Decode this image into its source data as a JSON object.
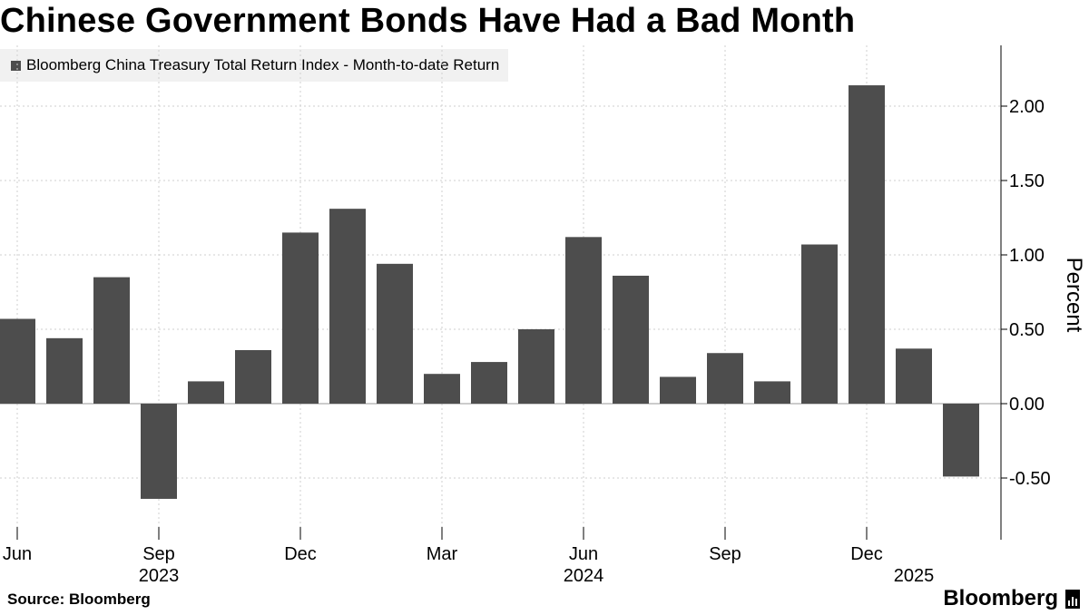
{
  "title": "Chinese Government Bonds Have Had a Bad Month",
  "legend_label": "Bloomberg China Treasury Total Return Index - Month-to-date Return",
  "source": "Source: Bloomberg",
  "brand": "Bloomberg",
  "bar_color": "#4d4d4d",
  "chart_data": {
    "type": "bar",
    "title": "Chinese Government Bonds Have Had a Bad Month",
    "ylabel": "Percent",
    "xlabel": "",
    "ylim": [
      -0.8,
      2.4
    ],
    "yticks": [
      "2.00",
      "1.50",
      "1.00",
      "0.50",
      "0.00",
      "-0.50"
    ],
    "ytick_values": [
      2.0,
      1.5,
      1.0,
      0.5,
      0.0,
      -0.5
    ],
    "legend": "Bloomberg China Treasury Total Return Index - Month-to-date Return",
    "grid": "vertical",
    "categories": [
      "2023-06",
      "2023-07",
      "2023-08",
      "2023-09",
      "2023-10",
      "2023-11",
      "2023-12",
      "2024-01",
      "2024-02",
      "2024-03",
      "2024-04",
      "2024-05",
      "2024-06",
      "2024-07",
      "2024-08",
      "2024-09",
      "2024-10",
      "2024-11",
      "2024-12",
      "2025-01",
      "2025-02"
    ],
    "series": [
      {
        "name": "Bloomberg China Treasury Total Return Index - Month-to-date Return",
        "values": [
          0.57,
          0.44,
          0.85,
          -0.64,
          0.15,
          0.36,
          1.15,
          1.31,
          0.94,
          0.2,
          0.28,
          0.5,
          1.12,
          0.86,
          0.18,
          0.34,
          0.15,
          1.07,
          2.14,
          0.37,
          -0.49
        ]
      }
    ],
    "xticks": [
      {
        "category": "2023-06",
        "label": "Jun",
        "year": ""
      },
      {
        "category": "2023-09",
        "label": "Sep",
        "year": "2023"
      },
      {
        "category": "2023-12",
        "label": "Dec",
        "year": ""
      },
      {
        "category": "2024-03",
        "label": "Mar",
        "year": ""
      },
      {
        "category": "2024-06",
        "label": "Jun",
        "year": "2024"
      },
      {
        "category": "2024-09",
        "label": "Sep",
        "year": ""
      },
      {
        "category": "2024-12",
        "label": "Dec",
        "year": ""
      },
      {
        "category": "2025-01",
        "label": "",
        "year": "2025"
      }
    ]
  }
}
